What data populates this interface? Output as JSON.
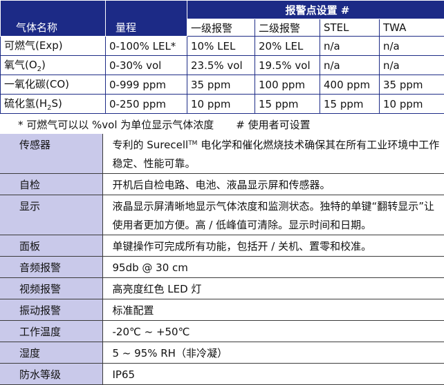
{
  "gas_table": {
    "header": {
      "gas_name": "气体名称",
      "range": "量程",
      "alarm_title": "报警点设置 #",
      "low": "一级报警",
      "high": "二级报警",
      "stel": "STEL",
      "twa": "TWA"
    },
    "rows": [
      {
        "gas_pre": "可燃气(Exp)",
        "gas_sub": "",
        "gas_post": "",
        "range": "0-100% LEL*",
        "low": "10% LEL",
        "high": "20% LEL",
        "stel": "n/a",
        "twa": "n/a"
      },
      {
        "gas_pre": "氧气(O",
        "gas_sub": "2",
        "gas_post": ")",
        "range": "0-30% vol",
        "low": "23.5% vol",
        "high": "19.5% vol",
        "stel": "n/a",
        "twa": "n/a"
      },
      {
        "gas_pre": "一氧化碳(CO)",
        "gas_sub": "",
        "gas_post": "",
        "range": "0-999 ppm",
        "low": "35 ppm",
        "high": "100 ppm",
        "stel": "400 ppm",
        "twa": "35 ppm"
      },
      {
        "gas_pre": "硫化氢(H",
        "gas_sub": "2",
        "gas_post": "S)",
        "range": "0-250 ppm",
        "low": "10 ppm",
        "high": "15 ppm",
        "stel": "15 ppm",
        "twa": "10 ppm"
      }
    ]
  },
  "notes": {
    "note1": "* 可燃气可以以 %vol 为单位显示气体浓度",
    "note2": "# 使用者可设置"
  },
  "specs": [
    {
      "label": "传感器",
      "value_pre": "专利的 Surecell",
      "value_tm": "TM",
      "value_post": " 电化学和催化燃烧技术确保其在所有工业环境中工作稳定、性能可靠。"
    },
    {
      "label": "自检",
      "value_pre": "开机后自检电路、电池、液晶显示屏和传感器。",
      "value_tm": "",
      "value_post": ""
    },
    {
      "label": "显示",
      "value_pre": "液晶显示屏清晰地显示气体浓度和监测状态。独特的单键“翻转显示”让使用者更加方便。高 / 低峰值可清除。显示时间和日期。",
      "value_tm": "",
      "value_post": ""
    },
    {
      "label": "面板",
      "value_pre": "单键操作可完成所有功能，包括开 / 关机、置零和校准。",
      "value_tm": "",
      "value_post": ""
    },
    {
      "label": "音频报警",
      "value_pre": "95db @ 30 cm",
      "value_tm": "",
      "value_post": ""
    },
    {
      "label": "视频报警",
      "value_pre": "高亮度红色 LED 灯",
      "value_tm": "",
      "value_post": ""
    },
    {
      "label": "振动报警",
      "value_pre": "标准配置",
      "value_tm": "",
      "value_post": ""
    },
    {
      "label": "工作温度",
      "value_pre": "-20℃ ~ +50℃",
      "value_tm": "",
      "value_post": ""
    },
    {
      "label": "湿度",
      "value_pre": "5 ~ 95% RH（非冷凝）",
      "value_tm": "",
      "value_post": ""
    },
    {
      "label": "防水等级",
      "value_pre": "IP65",
      "value_tm": "",
      "value_post": ""
    }
  ],
  "colors": {
    "header_bg": "#1c2a86",
    "label_bg": "#c9c9ea"
  }
}
